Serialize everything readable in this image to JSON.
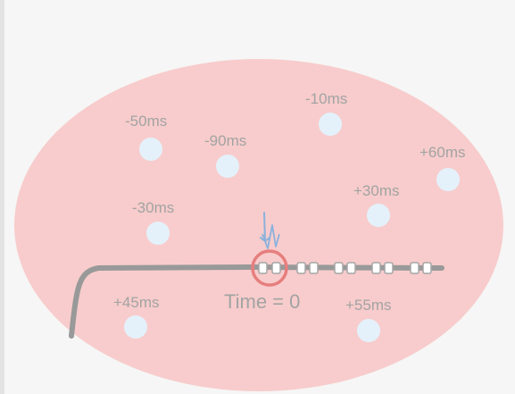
{
  "diagram": {
    "region_color": "#f8c9c9",
    "node_color": "#e4f1fb",
    "axon_color": "#999999",
    "highlight_color": "#e67e7e",
    "spike_color": "#8ab2dd",
    "time_label": "Time = 0",
    "cells": [
      {
        "label": "-50ms"
      },
      {
        "label": "-90ms"
      },
      {
        "label": "-10ms"
      },
      {
        "label": "+60ms"
      },
      {
        "label": "-30ms"
      },
      {
        "label": "+30ms"
      },
      {
        "label": "+45ms"
      },
      {
        "label": "+55ms"
      }
    ]
  }
}
